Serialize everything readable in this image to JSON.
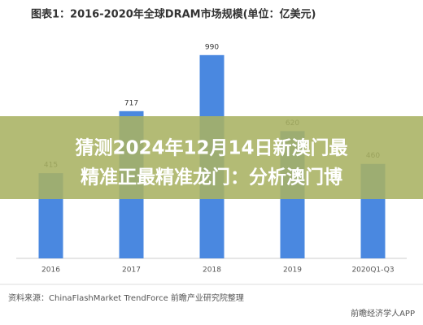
{
  "chart_data": {
    "type": "bar",
    "title": "图表1：2016-2020年全球DRAM市场规模(单位：亿美元)",
    "categories": [
      "2016",
      "2017",
      "2018",
      "2019",
      "2020Q1-Q3"
    ],
    "values": [
      415,
      717,
      990,
      620,
      460
    ],
    "color": "#4a88e0",
    "ylim": [
      0,
      1100
    ],
    "source": "资料来源：ChinaFlashMarket TrendForce 前瞻产业研究院整理",
    "logo": "前瞻经济学人APP"
  },
  "banner": {
    "lines": [
      "猜测2024年12月14日新澳门最",
      "精准正最精准龙门：分析澳门博"
    ]
  }
}
